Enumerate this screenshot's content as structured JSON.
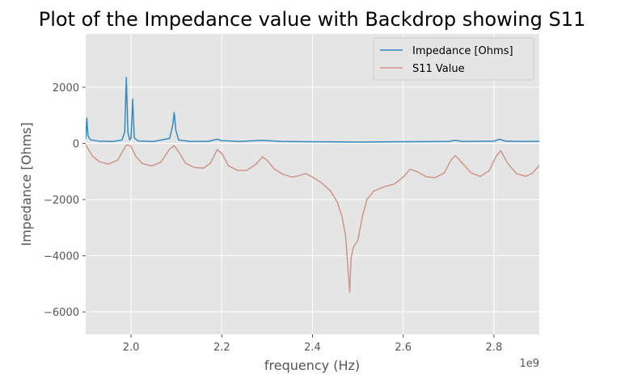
{
  "chart_data": {
    "type": "line",
    "title": "Plot of the Impedance value with Backdrop showing S11",
    "xlabel": "frequency (Hz)",
    "ylabel": "Impedance [Ohms]",
    "x_offset_label": "1e9",
    "xlim": [
      1.9,
      2.9
    ],
    "ylim": [
      -6800,
      3900
    ],
    "xticks": [
      2.0,
      2.2,
      2.4,
      2.6,
      2.8
    ],
    "xtick_labels": [
      "2.0",
      "2.2",
      "2.4",
      "2.6",
      "2.8"
    ],
    "yticks": [
      -6000,
      -4000,
      -2000,
      0,
      2000
    ],
    "ytick_labels": [
      "−6000",
      "−4000",
      "−2000",
      "0",
      "2000"
    ],
    "grid": true,
    "legend_position": "top-right",
    "series": [
      {
        "name": "Impedance [Ohms]",
        "color": "#348abd",
        "points": [
          [
            1.9,
            150
          ],
          [
            1.9025,
            900
          ],
          [
            1.905,
            280
          ],
          [
            1.91,
            130
          ],
          [
            1.93,
            80
          ],
          [
            1.96,
            70
          ],
          [
            1.98,
            120
          ],
          [
            1.986,
            400
          ],
          [
            1.9895,
            2350
          ],
          [
            1.993,
            400
          ],
          [
            1.997,
            120
          ],
          [
            2.0,
            200
          ],
          [
            2.0035,
            1580
          ],
          [
            2.007,
            200
          ],
          [
            2.015,
            90
          ],
          [
            2.05,
            70
          ],
          [
            2.085,
            180
          ],
          [
            2.092,
            650
          ],
          [
            2.095,
            1100
          ],
          [
            2.099,
            450
          ],
          [
            2.105,
            120
          ],
          [
            2.13,
            70
          ],
          [
            2.17,
            75
          ],
          [
            2.19,
            150
          ],
          [
            2.2,
            100
          ],
          [
            2.24,
            70
          ],
          [
            2.29,
            110
          ],
          [
            2.33,
            70
          ],
          [
            2.4,
            60
          ],
          [
            2.5,
            50
          ],
          [
            2.6,
            60
          ],
          [
            2.7,
            70
          ],
          [
            2.715,
            110
          ],
          [
            2.73,
            70
          ],
          [
            2.8,
            80
          ],
          [
            2.812,
            150
          ],
          [
            2.825,
            85
          ],
          [
            2.85,
            70
          ],
          [
            2.9,
            75
          ]
        ]
      },
      {
        "name": "S11 Value",
        "color": "#cd958b",
        "points": [
          [
            1.9,
            -50
          ],
          [
            1.915,
            -450
          ],
          [
            1.93,
            -650
          ],
          [
            1.95,
            -740
          ],
          [
            1.97,
            -600
          ],
          [
            1.99,
            -50
          ],
          [
            2.0,
            -100
          ],
          [
            2.01,
            -450
          ],
          [
            2.025,
            -720
          ],
          [
            2.045,
            -800
          ],
          [
            2.065,
            -680
          ],
          [
            2.085,
            -200
          ],
          [
            2.095,
            -80
          ],
          [
            2.105,
            -300
          ],
          [
            2.12,
            -700
          ],
          [
            2.14,
            -860
          ],
          [
            2.16,
            -880
          ],
          [
            2.175,
            -700
          ],
          [
            2.19,
            -220
          ],
          [
            2.2,
            -350
          ],
          [
            2.215,
            -800
          ],
          [
            2.235,
            -960
          ],
          [
            2.255,
            -960
          ],
          [
            2.275,
            -750
          ],
          [
            2.29,
            -480
          ],
          [
            2.3,
            -600
          ],
          [
            2.315,
            -900
          ],
          [
            2.335,
            -1100
          ],
          [
            2.355,
            -1200
          ],
          [
            2.37,
            -1150
          ],
          [
            2.385,
            -1070
          ],
          [
            2.4,
            -1200
          ],
          [
            2.42,
            -1400
          ],
          [
            2.44,
            -1700
          ],
          [
            2.455,
            -2100
          ],
          [
            2.465,
            -2600
          ],
          [
            2.473,
            -3300
          ],
          [
            2.478,
            -4400
          ],
          [
            2.482,
            -5300
          ],
          [
            2.485,
            -4100
          ],
          [
            2.49,
            -3700
          ],
          [
            2.5,
            -3450
          ],
          [
            2.51,
            -2600
          ],
          [
            2.52,
            -2000
          ],
          [
            2.535,
            -1700
          ],
          [
            2.56,
            -1530
          ],
          [
            2.58,
            -1450
          ],
          [
            2.6,
            -1200
          ],
          [
            2.615,
            -920
          ],
          [
            2.63,
            -1000
          ],
          [
            2.65,
            -1180
          ],
          [
            2.67,
            -1220
          ],
          [
            2.69,
            -1060
          ],
          [
            2.705,
            -600
          ],
          [
            2.715,
            -430
          ],
          [
            2.73,
            -700
          ],
          [
            2.75,
            -1050
          ],
          [
            2.77,
            -1180
          ],
          [
            2.79,
            -960
          ],
          [
            2.805,
            -450
          ],
          [
            2.815,
            -260
          ],
          [
            2.83,
            -700
          ],
          [
            2.85,
            -1080
          ],
          [
            2.87,
            -1170
          ],
          [
            2.885,
            -1060
          ],
          [
            2.9,
            -780
          ]
        ]
      }
    ]
  }
}
